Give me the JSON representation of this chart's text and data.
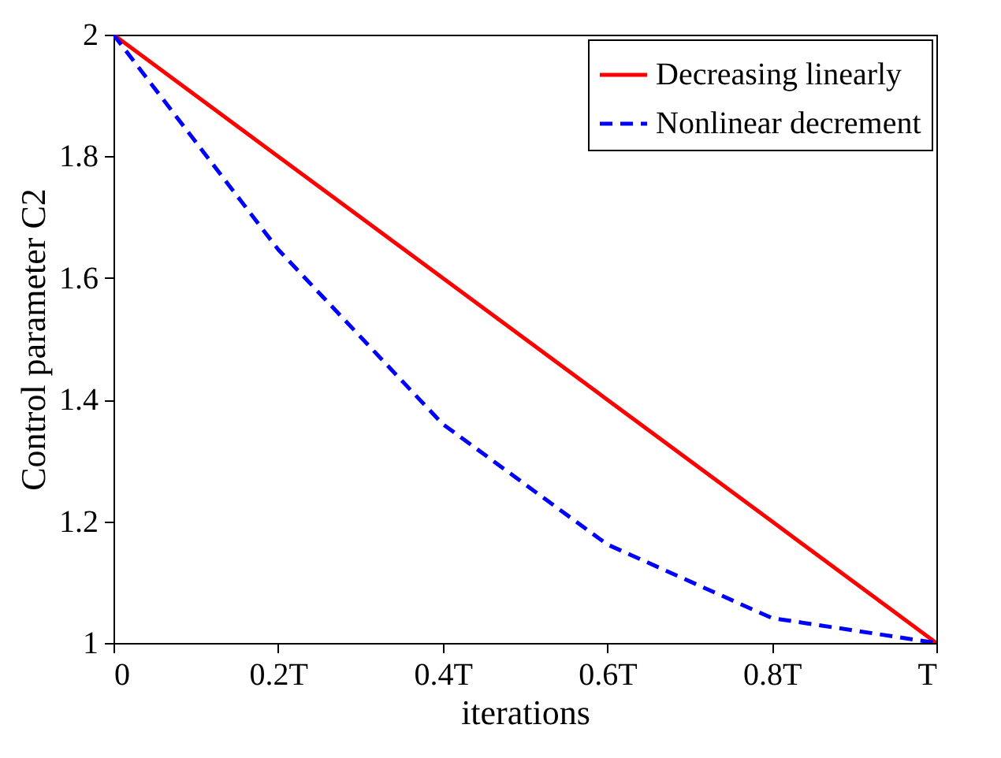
{
  "chart_data": {
    "type": "line",
    "xlabel": "iterations",
    "ylabel": "Control parameter C2",
    "x": [
      0,
      0.2,
      0.4,
      0.6,
      0.8,
      1
    ],
    "series": [
      {
        "name": "Decreasing linearly",
        "color": "#ff0000",
        "line_style": "solid",
        "values": [
          2,
          1.8,
          1.6,
          1.4,
          1.2,
          1
        ]
      },
      {
        "name": "Nonlinear decrement",
        "color": "#0000ff",
        "line_style": "dashed",
        "values": [
          2,
          1.647,
          1.36,
          1.162,
          1.041,
          1
        ]
      }
    ],
    "xlim": [
      0,
      1
    ],
    "xticks": [
      0,
      {
        "value": 0.2,
        "label": "0.2T"
      },
      {
        "value": 0.4,
        "label": "0.4T"
      },
      {
        "value": 0.6,
        "label": "0.6T"
      },
      {
        "value": 0.8,
        "label": "0.8T"
      },
      {
        "value": 1,
        "label": "T"
      }
    ],
    "ylim": [
      1,
      2
    ],
    "yticks": [
      1,
      1.2,
      1.4,
      1.6,
      1.8,
      2
    ],
    "grid": false,
    "legend": "top right"
  }
}
